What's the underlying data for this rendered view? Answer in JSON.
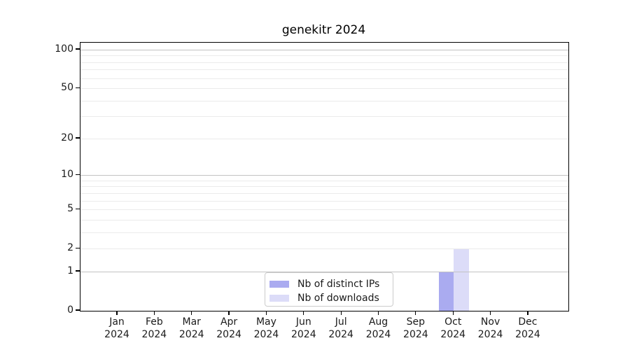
{
  "chart_data": {
    "type": "bar",
    "title": "genekitr 2024",
    "months": [
      "Jan",
      "Feb",
      "Mar",
      "Apr",
      "May",
      "Jun",
      "Jul",
      "Aug",
      "Sep",
      "Oct",
      "Nov",
      "Dec"
    ],
    "year_label": "2024",
    "series": [
      {
        "name": "Nb of distinct IPs",
        "color": "#aaabf0",
        "values": [
          0,
          0,
          0,
          0,
          0,
          0,
          0,
          0,
          0,
          1,
          0,
          0
        ]
      },
      {
        "name": "Nb of downloads",
        "color": "#dcdcf8",
        "values": [
          0,
          0,
          0,
          0,
          0,
          0,
          0,
          0,
          0,
          2,
          0,
          0
        ]
      }
    ],
    "yscale": "log1p",
    "ylim": [
      0,
      110
    ],
    "yticks": [
      0,
      1,
      2,
      5,
      10,
      20,
      50,
      100
    ],
    "major_gridlines": [
      1,
      10,
      100
    ],
    "minor_gridlines": [
      2,
      3,
      4,
      5,
      6,
      7,
      8,
      9,
      20,
      30,
      40,
      50,
      60,
      70,
      80,
      90
    ],
    "grid": true,
    "legend_position": "bottom-center"
  },
  "colors": {
    "major_grid": "#c3c3c3",
    "minor_grid": "#ebebeb",
    "axis": "#000000",
    "text": "#1a1a1a",
    "legend_border": "#cccccc",
    "background": "#ffffff"
  }
}
